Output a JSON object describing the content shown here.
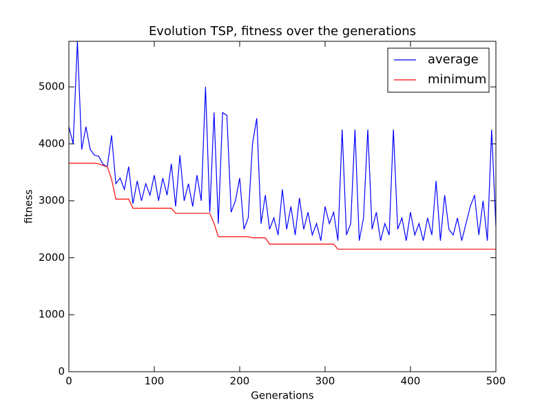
{
  "chart_data": {
    "type": "line",
    "title": "Evolution TSP, fitness over the generations",
    "xlabel": "Generations",
    "ylabel": "fitness",
    "x": [
      0,
      5,
      10,
      15,
      20,
      25,
      30,
      35,
      40,
      45,
      50,
      55,
      60,
      65,
      70,
      75,
      80,
      85,
      90,
      95,
      100,
      105,
      110,
      115,
      120,
      125,
      130,
      135,
      140,
      145,
      150,
      155,
      160,
      165,
      170,
      175,
      180,
      185,
      190,
      195,
      200,
      205,
      210,
      215,
      220,
      225,
      230,
      235,
      240,
      245,
      250,
      255,
      260,
      265,
      270,
      275,
      280,
      285,
      290,
      295,
      300,
      305,
      310,
      315,
      320,
      325,
      330,
      335,
      340,
      345,
      350,
      355,
      360,
      365,
      370,
      375,
      380,
      385,
      390,
      395,
      400,
      405,
      410,
      415,
      420,
      425,
      430,
      435,
      440,
      445,
      450,
      455,
      460,
      465,
      470,
      475,
      480,
      485,
      490,
      495,
      500
    ],
    "series": [
      {
        "name": "average",
        "color": "#0000ff",
        "values": [
          4300,
          4000,
          5800,
          3900,
          4300,
          3900,
          3800,
          3780,
          3640,
          3600,
          4150,
          3300,
          3400,
          3200,
          3600,
          2950,
          3350,
          3000,
          3300,
          3100,
          3450,
          3000,
          3400,
          3100,
          3650,
          2900,
          3800,
          3000,
          3300,
          2900,
          3450,
          3000,
          5000,
          2800,
          4550,
          2600,
          4550,
          4500,
          2800,
          3000,
          3400,
          2500,
          2700,
          4000,
          4450,
          2600,
          3100,
          2500,
          2700,
          2400,
          3200,
          2500,
          2900,
          2400,
          3050,
          2500,
          2800,
          2400,
          2600,
          2300,
          2900,
          2600,
          2800,
          2300,
          4250,
          2400,
          2600,
          4250,
          2300,
          2700,
          4250,
          2500,
          2800,
          2300,
          2600,
          2400,
          4250,
          2500,
          2700,
          2300,
          2800,
          2400,
          2600,
          2300,
          2700,
          2400,
          3350,
          2300,
          3100,
          2500,
          2400,
          2700,
          2300,
          2600,
          2900,
          3100,
          2400,
          3000,
          2300,
          4250,
          2550
        ]
      },
      {
        "name": "minimum",
        "color": "#ff0000",
        "values": [
          3660,
          3660,
          3660,
          3660,
          3660,
          3660,
          3660,
          3650,
          3620,
          3600,
          3380,
          3030,
          3030,
          3030,
          3030,
          2870,
          2870,
          2870,
          2870,
          2870,
          2870,
          2870,
          2870,
          2870,
          2870,
          2780,
          2780,
          2780,
          2780,
          2780,
          2780,
          2780,
          2780,
          2780,
          2600,
          2370,
          2370,
          2370,
          2370,
          2370,
          2370,
          2370,
          2370,
          2350,
          2350,
          2350,
          2350,
          2240,
          2240,
          2240,
          2240,
          2240,
          2240,
          2240,
          2240,
          2240,
          2240,
          2240,
          2240,
          2240,
          2240,
          2240,
          2240,
          2150,
          2150,
          2150,
          2150,
          2150,
          2150,
          2150,
          2150,
          2150,
          2150,
          2150,
          2150,
          2150,
          2150,
          2150,
          2150,
          2150,
          2150,
          2150,
          2150,
          2150,
          2150,
          2150,
          2150,
          2150,
          2150,
          2150,
          2150,
          2150,
          2150,
          2150,
          2150,
          2150,
          2150,
          2150,
          2150,
          2150,
          2150
        ]
      }
    ],
    "xlim": [
      0,
      500
    ],
    "xticks": [
      0,
      100,
      200,
      300,
      400,
      500
    ],
    "ylim": [
      0,
      5800
    ],
    "yticks": [
      0,
      1000,
      2000,
      3000,
      4000,
      5000
    ],
    "legend": "upper right"
  }
}
